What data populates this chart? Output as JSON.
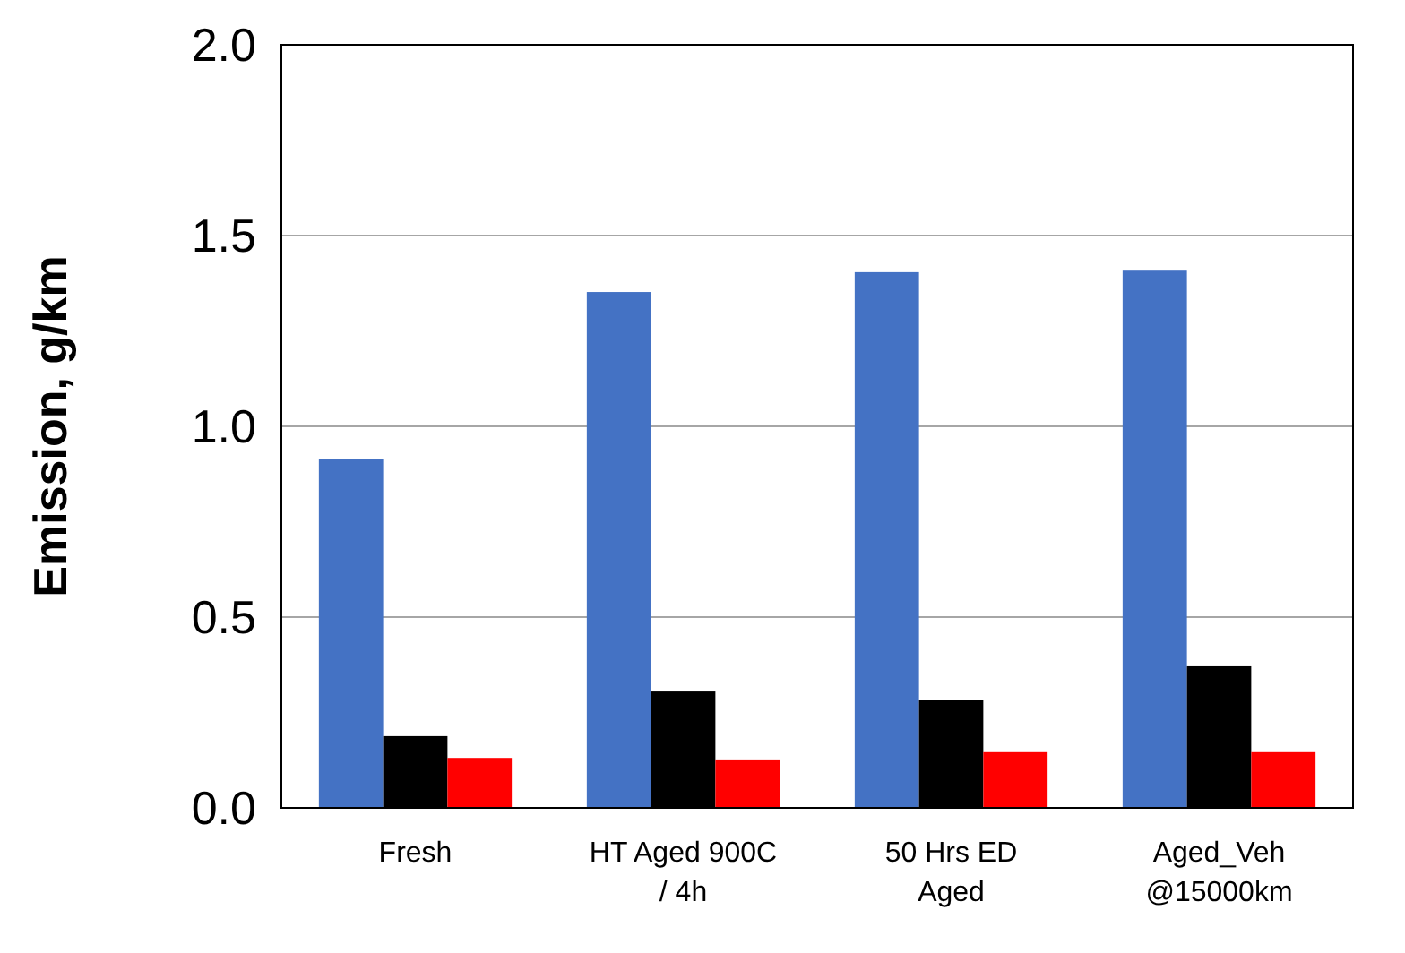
{
  "chart_data": {
    "type": "bar",
    "ylabel": "Emission, g/km",
    "categories": [
      "Fresh",
      "HT Aged 900C\n/ 4h",
      "50 Hrs ED\nAged",
      "Aged_Veh\n@15000km"
    ],
    "series": [
      {
        "color": "#4472c4",
        "values": [
          0.915,
          1.352,
          1.404,
          1.408
        ]
      },
      {
        "color": "#000000",
        "values": [
          0.188,
          0.305,
          0.282,
          0.371
        ]
      },
      {
        "color": "#ff0000",
        "values": [
          0.131,
          0.127,
          0.146,
          0.146
        ]
      }
    ],
    "ylim": [
      0,
      2
    ],
    "yticks": [
      {
        "value": 0,
        "label": "0.0"
      },
      {
        "value": 0.5,
        "label": "0.5"
      },
      {
        "value": 1,
        "label": "1.0"
      },
      {
        "value": 1.5,
        "label": "1.5"
      },
      {
        "value": 2,
        "label": "2.0"
      }
    ],
    "grid": "y"
  }
}
